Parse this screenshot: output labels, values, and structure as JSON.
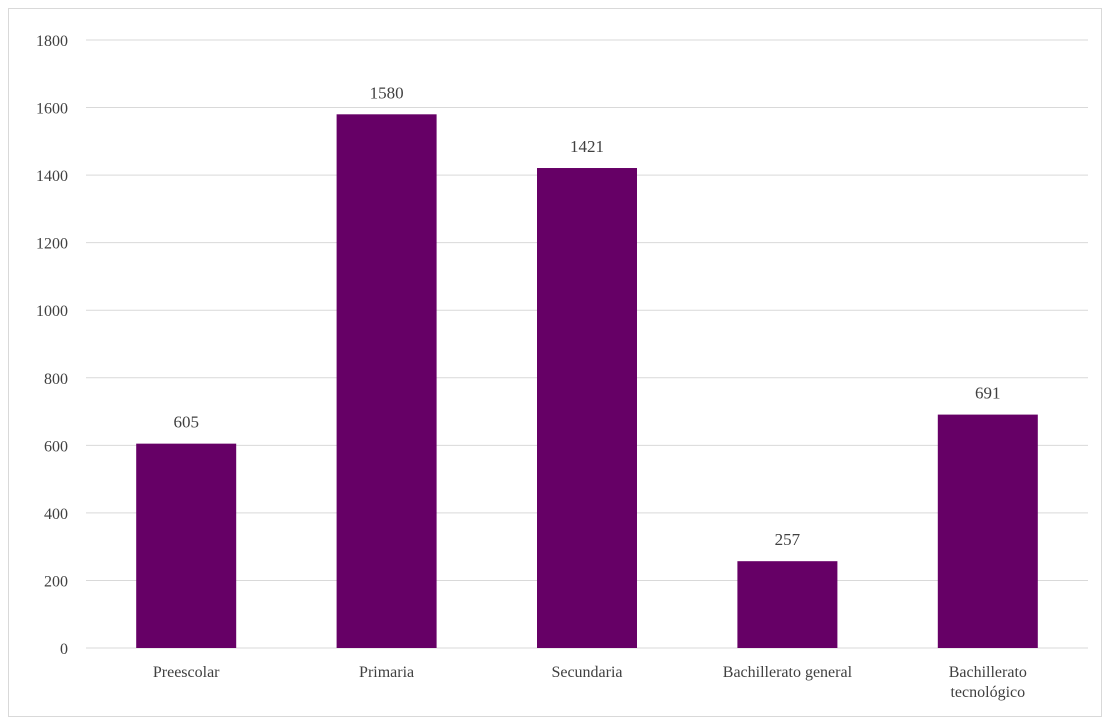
{
  "chart_data": {
    "type": "bar",
    "title": "",
    "xlabel": "",
    "ylabel": "",
    "categories": [
      [
        "Preescolar"
      ],
      [
        "Primaria"
      ],
      [
        "Secundaria"
      ],
      [
        "Bachillerato general"
      ],
      [
        "Bachillerato",
        "tecnológico"
      ]
    ],
    "values": [
      605,
      1580,
      1421,
      257,
      691
    ],
    "ylim": [
      0,
      1800
    ],
    "yticks": [
      0,
      200,
      400,
      600,
      800,
      1000,
      1200,
      1400,
      1600,
      1800
    ],
    "grid": true,
    "legend": "none",
    "bar_color": "#660066",
    "grid_color": "#d9d9d9"
  }
}
